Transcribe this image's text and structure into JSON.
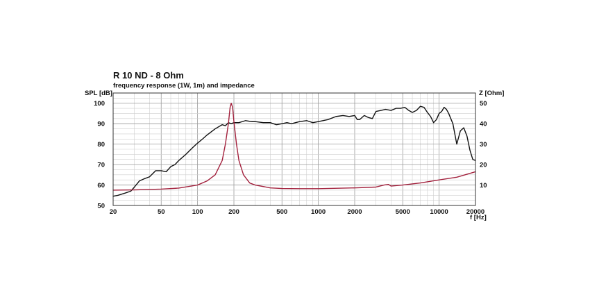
{
  "chart_data": {
    "type": "line",
    "title": "R 10 ND - 8 Ohm",
    "subtitle": "frequency response (1W, 1m) and impedance",
    "xlabel": "f [Hz]",
    "ylabel_left": "SPL [dB]",
    "ylabel_right": "Z [Ohm]",
    "x_scale": "log",
    "xlim": [
      20,
      20000
    ],
    "ylim_left": [
      50,
      105
    ],
    "ylim_right": [
      0,
      55
    ],
    "x_ticks": [
      20,
      50,
      100,
      200,
      500,
      1000,
      2000,
      5000,
      10000,
      20000
    ],
    "x_tick_labels": [
      "20",
      "50",
      "100",
      "200",
      "500",
      "1000",
      "2000",
      "5000",
      "10000",
      "20000"
    ],
    "y_left_ticks": [
      50,
      60,
      70,
      80,
      90,
      100
    ],
    "y_left_tick_labels": [
      "50",
      "60",
      "70",
      "80",
      "90",
      "100"
    ],
    "y_right_ticks": [
      10,
      20,
      30,
      40,
      50
    ],
    "y_right_tick_labels": [
      "10",
      "20",
      "30",
      "40",
      "50"
    ],
    "grid": true,
    "series": [
      {
        "axis": "left",
        "color": "#111111",
        "x": [
          20,
          22,
          25,
          28,
          30,
          33,
          36,
          40,
          45,
          50,
          55,
          60,
          65,
          70,
          80,
          90,
          100,
          110,
          120,
          140,
          160,
          170,
          180,
          190,
          200,
          220,
          250,
          280,
          300,
          350,
          400,
          450,
          500,
          550,
          600,
          700,
          800,
          900,
          1000,
          1200,
          1400,
          1600,
          1800,
          2000,
          2100,
          2200,
          2400,
          2600,
          2800,
          3000,
          3300,
          3600,
          4000,
          4400,
          4800,
          5200,
          5600,
          6000,
          6500,
          7000,
          7500,
          8000,
          8500,
          9000,
          9500,
          10000,
          10500,
          11000,
          11500,
          12000,
          13000,
          14000,
          15000,
          16000,
          17000,
          18000,
          19000,
          20000
        ],
        "y": [
          54.5,
          55,
          56,
          57,
          59,
          62,
          63,
          64,
          67,
          67,
          66.5,
          69,
          70,
          72,
          75,
          78,
          80.5,
          82.5,
          84.5,
          87.5,
          89.5,
          89,
          90.5,
          90,
          90.5,
          90.5,
          91.5,
          91,
          91,
          90.5,
          90.5,
          89.5,
          90,
          90.5,
          90,
          91,
          91.5,
          90.5,
          91,
          92,
          93.5,
          94,
          93.5,
          94,
          92,
          92,
          94,
          93,
          92.5,
          96,
          96.5,
          97,
          96.5,
          97.5,
          97.5,
          98,
          96.5,
          95.5,
          96.5,
          98.5,
          98,
          95.5,
          93.5,
          90.5,
          92,
          95,
          96,
          98,
          97,
          95,
          90,
          80,
          86.5,
          88,
          84,
          77,
          72.5,
          72
        ]
      },
      {
        "axis": "right",
        "color": "#a3213d",
        "x": [
          20,
          30,
          50,
          70,
          100,
          120,
          140,
          160,
          170,
          180,
          186,
          190,
          195,
          200,
          210,
          220,
          240,
          270,
          300,
          400,
          500,
          700,
          1000,
          2000,
          3000,
          3500,
          3800,
          4000,
          5000,
          7000,
          10000,
          14000,
          20000
        ],
        "y": [
          7.5,
          7.6,
          8,
          8.5,
          10,
          12,
          15,
          22,
          30,
          40,
          48,
          50,
          48,
          41,
          30,
          22,
          15,
          11,
          10,
          8.6,
          8.3,
          8.2,
          8.2,
          8.6,
          9,
          10,
          10.3,
          9.5,
          10,
          11,
          12.5,
          13.8,
          16.5
        ]
      }
    ]
  }
}
